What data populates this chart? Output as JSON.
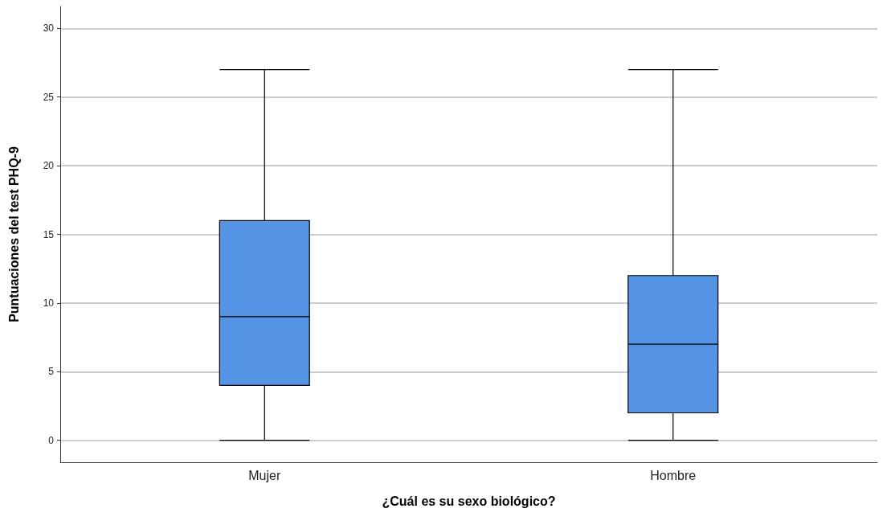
{
  "chart_data": {
    "type": "box",
    "xlabel": "¿Cuál es su sexo biológico?",
    "ylabel": "Puntuaciones del test PHQ-9",
    "categories": [
      "Mujer",
      "Hombre"
    ],
    "boxes": [
      {
        "low": 0,
        "q1": 4,
        "median": 9,
        "q3": 16,
        "high": 27
      },
      {
        "low": 0,
        "q1": 2,
        "median": 7,
        "q3": 12,
        "high": 27
      }
    ],
    "color": "#5594e4",
    "ylim": [
      -1.6,
      31.6
    ],
    "yticks": [
      0,
      5,
      10,
      15,
      20,
      25,
      30
    ],
    "grid": "y"
  }
}
